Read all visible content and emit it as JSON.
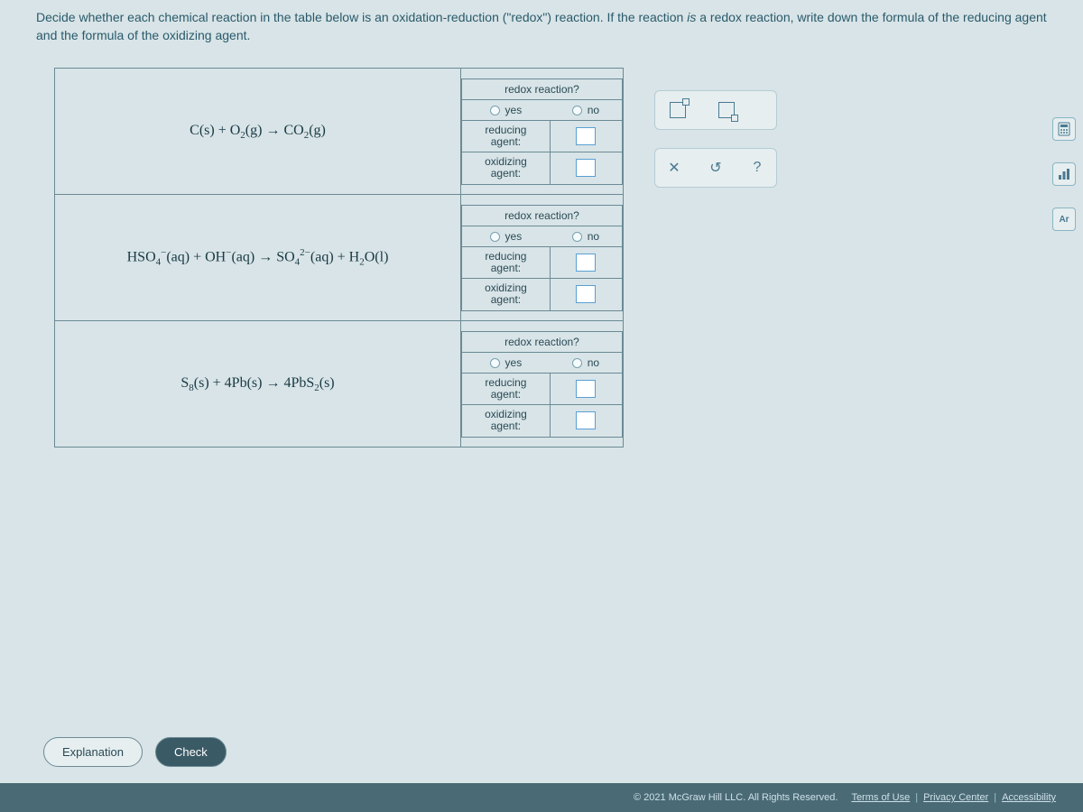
{
  "instructions": "Decide whether each chemical reaction in the table below is an oxidation-reduction (\"redox\") reaction. If the reaction is a redox reaction, write down the formula of the reducing agent and the formula of the oxidizing agent.",
  "table": {
    "header_redox": "redox reaction?",
    "yes_label": "yes",
    "no_label": "no",
    "reducing_label": "reducing agent:",
    "oxidizing_label": "oxidizing agent:",
    "rows": [
      {
        "equation_html": "C(s) + O<sub>2</sub>(g) → CO<sub>2</sub>(g)"
      },
      {
        "equation_html": "HSO<sub>4</sub><sup>−</sup>(aq) + OH<sup>−</sup>(aq) → SO<sub>4</sub><sup>2−</sup>(aq) + H<sub>2</sub>O(l)"
      },
      {
        "equation_html": "S<sub>8</sub>(s) + 4Pb(s) → 4PbS<sub>2</sub>(s)"
      }
    ]
  },
  "toolbar": {
    "superscript_tool": "□",
    "subscript_tool": "□",
    "reset_label": "✕",
    "undo_label": "↺",
    "help_label": "?"
  },
  "side": {
    "calc_icon": "⌨",
    "graph_icon": "📊",
    "periodic_icon": "Ar"
  },
  "buttons": {
    "explanation": "Explanation",
    "check": "Check"
  },
  "footer": {
    "copyright": "© 2021 McGraw Hill LLC. All Rights Reserved.",
    "terms": "Terms of Use",
    "privacy": "Privacy Center",
    "accessibility": "Accessibility"
  },
  "colors": {
    "bg": "#d8e4e7",
    "border": "#6b8a95",
    "text": "#2a5a6b",
    "footer_bg": "#4a6a75",
    "input_border": "#5a9fd4"
  }
}
